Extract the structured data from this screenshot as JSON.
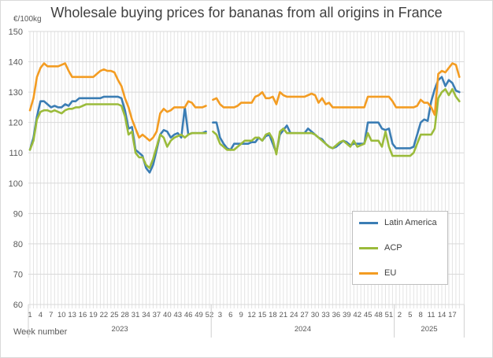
{
  "chart_data": {
    "type": "line",
    "title": "Wholesale buying prices for bananas from all origins in France",
    "ylabel": "€/100kg",
    "xlabel": "Week number",
    "ylim": [
      60,
      150
    ],
    "yticks": [
      60,
      70,
      80,
      90,
      100,
      110,
      120,
      130,
      140,
      150
    ],
    "grid": true,
    "legend_position": "right",
    "years": [
      {
        "label": "2023",
        "weeks": 52,
        "tick_labels": [
          "1",
          "4",
          "7",
          "10",
          "13",
          "16",
          "19",
          "22",
          "25",
          "28",
          "31",
          "34",
          "37",
          "40",
          "43",
          "46",
          "49",
          "52"
        ]
      },
      {
        "label": "2024",
        "weeks": 52,
        "tick_labels": [
          "3",
          "6",
          "9",
          "12",
          "15",
          "18",
          "21",
          "24",
          "27",
          "30",
          "33",
          "36",
          "39",
          "42",
          "45",
          "48",
          "51"
        ]
      },
      {
        "label": "2025",
        "weeks": 19,
        "tick_labels": [
          "2",
          "5",
          "8",
          "11",
          "14",
          "17"
        ]
      }
    ],
    "series": [
      {
        "name": "Latin America",
        "color": "#3b7db4",
        "values": [
          111,
          115,
          122,
          127,
          127,
          126,
          125,
          125.5,
          125,
          125,
          126,
          125.5,
          127,
          127,
          128,
          128,
          128,
          128,
          128,
          128,
          128,
          128.5,
          128.5,
          128.5,
          128.5,
          128.5,
          128,
          124,
          118,
          118.5,
          111,
          110,
          109,
          105,
          103.5,
          106,
          111,
          116,
          117.5,
          117,
          115,
          116,
          116.5,
          115,
          125,
          116,
          116.5,
          116.5,
          116.5,
          116.5,
          117,
          null,
          120,
          120,
          115,
          113,
          111.5,
          111,
          113,
          113,
          113,
          113,
          113,
          113.5,
          113.5,
          115,
          114,
          115.5,
          116,
          113,
          110,
          116,
          117.5,
          119,
          116.5,
          116.5,
          116.5,
          116.5,
          116.5,
          118,
          117,
          116,
          115,
          114.5,
          113,
          112,
          111.5,
          112,
          113,
          114,
          113.5,
          112.5,
          113,
          113,
          113,
          113,
          120,
          120,
          120,
          120,
          118,
          117.5,
          118,
          113,
          111.5,
          111.5,
          111.5,
          111.5,
          111.5,
          112,
          116,
          120,
          121,
          120.5,
          127,
          131,
          134,
          135,
          132,
          134,
          133,
          130.5,
          130
        ]
      },
      {
        "name": "ACP",
        "color": "#9bbb3b",
        "values": [
          111,
          114,
          121,
          123.5,
          124,
          124,
          123.5,
          124,
          123.5,
          123,
          124,
          124.5,
          124.5,
          125,
          125,
          125.5,
          126,
          126,
          126,
          126,
          126,
          126,
          126,
          126,
          126,
          126,
          125.5,
          122,
          116,
          117,
          110,
          108.5,
          108.5,
          106,
          105,
          108,
          112,
          116,
          115,
          112,
          114,
          115,
          115.5,
          116,
          115,
          116,
          116.5,
          116.5,
          116.5,
          116.5,
          116.5,
          null,
          117,
          116,
          113,
          112,
          111,
          111,
          111,
          112,
          113,
          114,
          114,
          114,
          115,
          115,
          114,
          116,
          116.5,
          114.5,
          109.5,
          117,
          118,
          116.5,
          116.5,
          116.5,
          116.5,
          116.5,
          116.5,
          116.5,
          116.5,
          116,
          115,
          114,
          113,
          112,
          111.5,
          112.5,
          113.5,
          114,
          113,
          112,
          114,
          112,
          112.5,
          113,
          116.5,
          114,
          114,
          114,
          112,
          117,
          112,
          109,
          109,
          109,
          109,
          109,
          109,
          110,
          113,
          116,
          116,
          116,
          116,
          118,
          128,
          130,
          131,
          129,
          131,
          128.5,
          127
        ]
      },
      {
        "name": "EU",
        "color": "#f39c22",
        "values": [
          124,
          128,
          135,
          138,
          139.5,
          138.5,
          138.5,
          138.5,
          138.5,
          139,
          139.5,
          137,
          135,
          135,
          135,
          135,
          135,
          135,
          135,
          136,
          137,
          137.5,
          137,
          137,
          136.5,
          134,
          132,
          128,
          125,
          121,
          118,
          115,
          116,
          115,
          114,
          115,
          117,
          123,
          124.5,
          123.5,
          124,
          125,
          125,
          125,
          125,
          127,
          126.5,
          125,
          125,
          125,
          125.5,
          null,
          127.5,
          128,
          126,
          125,
          125,
          125,
          125,
          125.5,
          126.5,
          126.5,
          126.5,
          126.5,
          128.5,
          129,
          130,
          128,
          128,
          128.5,
          126,
          130,
          129,
          128.5,
          128.5,
          128.5,
          128.5,
          128.5,
          128.5,
          129,
          129.5,
          129,
          126.5,
          128,
          126,
          126.5,
          125,
          125,
          125,
          125,
          125,
          125,
          125,
          125,
          125,
          125,
          128.5,
          128.5,
          128.5,
          128.5,
          128.5,
          128.5,
          128.5,
          127,
          125,
          125,
          125,
          125,
          125,
          125,
          125.5,
          127.5,
          126.5,
          126.5,
          125,
          122.5,
          136,
          137,
          136.5,
          138,
          139.5,
          139,
          135
        ]
      }
    ]
  }
}
